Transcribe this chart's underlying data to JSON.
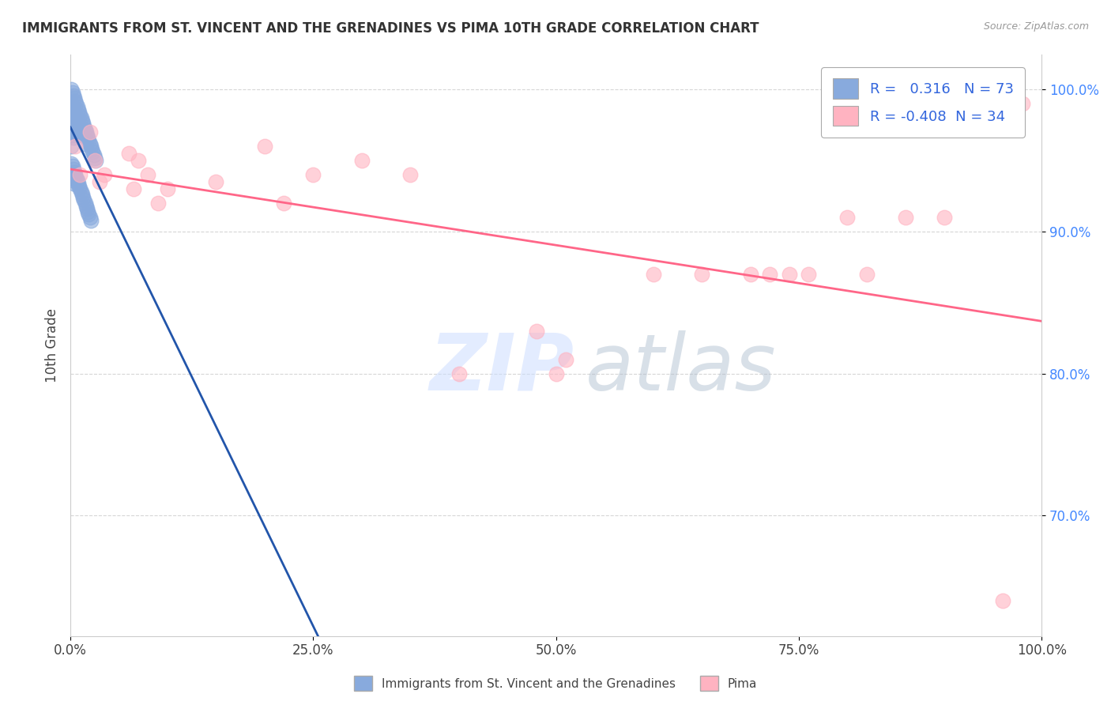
{
  "title": "IMMIGRANTS FROM ST. VINCENT AND THE GRENADINES VS PIMA 10TH GRADE CORRELATION CHART",
  "source_text": "Source: ZipAtlas.com",
  "ylabel": "10th Grade",
  "xlabel": "",
  "xlim": [
    0.0,
    1.0
  ],
  "ylim": [
    0.615,
    1.025
  ],
  "blue_R": 0.316,
  "blue_N": 73,
  "pink_R": -0.408,
  "pink_N": 34,
  "blue_color": "#88AADD",
  "pink_color": "#FFB3C1",
  "blue_line_color": "#2255AA",
  "pink_line_color": "#FF6688",
  "watermark_zip": "ZIP",
  "watermark_atlas": "atlas",
  "yticks": [
    0.7,
    0.8,
    0.9,
    1.0
  ],
  "ytick_labels": [
    "70.0%",
    "80.0%",
    "90.0%",
    "100.0%"
  ],
  "xticks": [
    0.0,
    0.25,
    0.5,
    0.75,
    1.0
  ],
  "xtick_labels": [
    "0.0%",
    "25.0%",
    "50.0%",
    "75.0%",
    "100.0%"
  ],
  "blue_x": [
    0.001,
    0.001,
    0.001,
    0.001,
    0.001,
    0.002,
    0.002,
    0.002,
    0.002,
    0.003,
    0.003,
    0.003,
    0.003,
    0.004,
    0.004,
    0.004,
    0.005,
    0.005,
    0.005,
    0.006,
    0.006,
    0.006,
    0.007,
    0.007,
    0.008,
    0.008,
    0.009,
    0.009,
    0.01,
    0.01,
    0.011,
    0.011,
    0.012,
    0.012,
    0.013,
    0.014,
    0.015,
    0.015,
    0.016,
    0.017,
    0.018,
    0.019,
    0.02,
    0.021,
    0.022,
    0.023,
    0.024,
    0.025,
    0.026,
    0.001,
    0.001,
    0.002,
    0.002,
    0.003,
    0.003,
    0.004,
    0.005,
    0.006,
    0.007,
    0.008,
    0.009,
    0.01,
    0.011,
    0.012,
    0.013,
    0.014,
    0.015,
    0.016,
    0.017,
    0.018,
    0.019,
    0.02,
    0.021
  ],
  "blue_y": [
    1.0,
    0.99,
    0.98,
    0.97,
    0.96,
    0.998,
    0.988,
    0.978,
    0.968,
    0.996,
    0.986,
    0.976,
    0.966,
    0.994,
    0.984,
    0.974,
    0.992,
    0.982,
    0.972,
    0.99,
    0.98,
    0.97,
    0.988,
    0.978,
    0.986,
    0.976,
    0.984,
    0.974,
    0.982,
    0.972,
    0.98,
    0.97,
    0.978,
    0.968,
    0.976,
    0.974,
    0.972,
    0.962,
    0.97,
    0.968,
    0.966,
    0.964,
    0.962,
    0.96,
    0.958,
    0.956,
    0.954,
    0.952,
    0.95,
    0.948,
    0.938,
    0.946,
    0.936,
    0.944,
    0.934,
    0.942,
    0.94,
    0.938,
    0.936,
    0.934,
    0.932,
    0.93,
    0.928,
    0.926,
    0.924,
    0.922,
    0.92,
    0.918,
    0.916,
    0.914,
    0.912,
    0.91,
    0.908
  ],
  "pink_x": [
    0.005,
    0.01,
    0.02,
    0.025,
    0.03,
    0.035,
    0.06,
    0.065,
    0.07,
    0.08,
    0.09,
    0.1,
    0.15,
    0.2,
    0.22,
    0.25,
    0.3,
    0.35,
    0.4,
    0.48,
    0.5,
    0.51,
    0.6,
    0.65,
    0.7,
    0.72,
    0.74,
    0.76,
    0.8,
    0.82,
    0.86,
    0.9,
    0.96,
    0.98
  ],
  "pink_y": [
    0.96,
    0.94,
    0.97,
    0.95,
    0.935,
    0.94,
    0.955,
    0.93,
    0.95,
    0.94,
    0.92,
    0.93,
    0.935,
    0.96,
    0.92,
    0.94,
    0.95,
    0.94,
    0.8,
    0.83,
    0.8,
    0.81,
    0.87,
    0.87,
    0.87,
    0.87,
    0.87,
    0.87,
    0.91,
    0.87,
    0.91,
    0.91,
    0.64,
    0.99
  ]
}
